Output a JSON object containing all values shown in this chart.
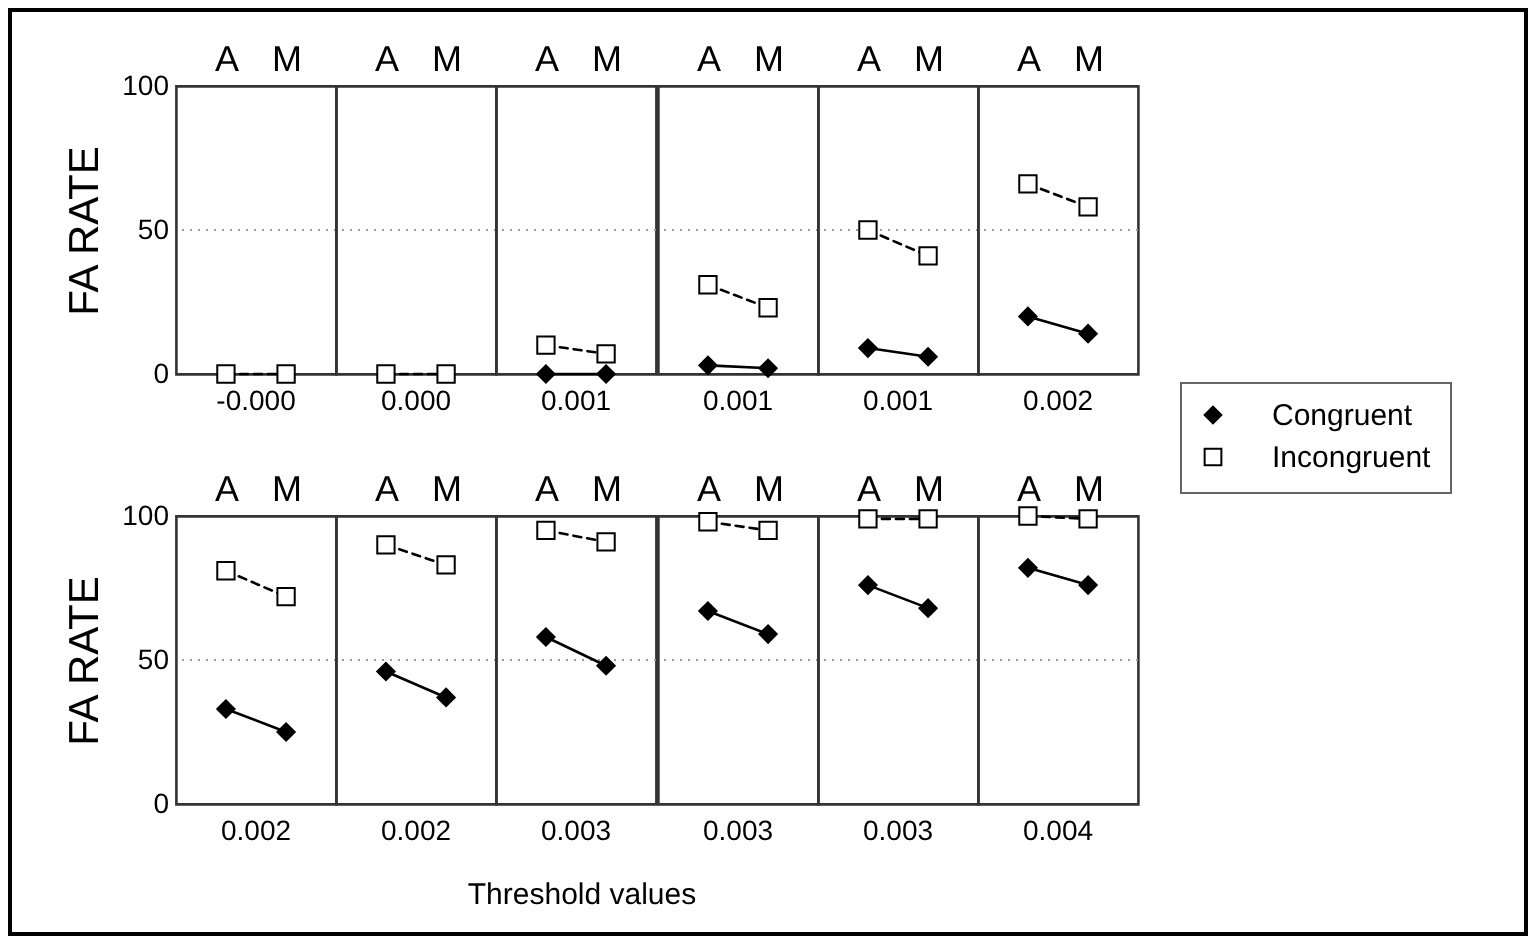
{
  "chart_data": [
    {
      "type": "line",
      "categories": [
        "A",
        "M"
      ],
      "xlabel": "-0.000",
      "ylabel": "FA RATE",
      "ylim": [
        0,
        100
      ],
      "yticks": [
        0,
        50,
        100
      ],
      "grid": false,
      "ref_lines": [
        {
          "axis": "y",
          "value": 50,
          "color": "#999999",
          "line_style": "dotted"
        }
      ],
      "series": [
        {
          "color": "#000000",
          "marker": "diamond",
          "line_style": "solid",
          "values": [
            null,
            null
          ]
        },
        {
          "color": "#000000",
          "marker": "square",
          "line_style": "dashed",
          "values": [
            0,
            0
          ]
        }
      ]
    },
    {
      "type": "line",
      "categories": [
        "A",
        "M"
      ],
      "xlabel": "0.000",
      "ylim": [
        0,
        100
      ],
      "tick_labels": "x",
      "grid": false,
      "ref_lines": [
        {
          "axis": "y",
          "value": 50,
          "color": "#999999",
          "line_style": "dotted"
        }
      ],
      "series": [
        {
          "color": "#000000",
          "marker": "diamond",
          "line_style": "solid",
          "values": [
            null,
            null
          ]
        },
        {
          "color": "#000000",
          "marker": "square",
          "line_style": "dashed",
          "values": [
            0,
            0
          ]
        }
      ]
    },
    {
      "type": "line",
      "categories": [
        "A",
        "M"
      ],
      "xlabel": "0.001",
      "ylim": [
        0,
        100
      ],
      "tick_labels": "x",
      "grid": false,
      "ref_lines": [
        {
          "axis": "y",
          "value": 50,
          "color": "#999999",
          "line_style": "dotted"
        }
      ],
      "series": [
        {
          "color": "#000000",
          "marker": "diamond",
          "line_style": "solid",
          "values": [
            0,
            0
          ]
        },
        {
          "color": "#000000",
          "marker": "square",
          "line_style": "dashed",
          "values": [
            10,
            7
          ]
        }
      ]
    },
    {
      "type": "line",
      "categories": [
        "A",
        "M"
      ],
      "xlabel": "0.001",
      "ylim": [
        0,
        100
      ],
      "tick_labels": "x",
      "grid": false,
      "ref_lines": [
        {
          "axis": "y",
          "value": 50,
          "color": "#999999",
          "line_style": "dotted"
        }
      ],
      "series": [
        {
          "color": "#000000",
          "marker": "diamond",
          "line_style": "solid",
          "values": [
            3,
            2
          ]
        },
        {
          "color": "#000000",
          "marker": "square",
          "line_style": "dashed",
          "values": [
            31,
            23
          ]
        }
      ]
    },
    {
      "type": "line",
      "categories": [
        "A",
        "M"
      ],
      "xlabel": "0.001",
      "ylim": [
        0,
        100
      ],
      "tick_labels": "x",
      "grid": false,
      "ref_lines": [
        {
          "axis": "y",
          "value": 50,
          "color": "#999999",
          "line_style": "dotted"
        }
      ],
      "series": [
        {
          "color": "#000000",
          "marker": "diamond",
          "line_style": "solid",
          "values": [
            9,
            6
          ]
        },
        {
          "color": "#000000",
          "marker": "square",
          "line_style": "dashed",
          "values": [
            50,
            41
          ]
        }
      ]
    },
    {
      "type": "line",
      "categories": [
        "A",
        "M"
      ],
      "xlabel": "0.002",
      "ylim": [
        0,
        100
      ],
      "tick_labels": "x",
      "grid": false,
      "legend": "right",
      "ref_lines": [
        {
          "axis": "y",
          "value": 50,
          "color": "#999999",
          "line_style": "dotted"
        }
      ],
      "series": [
        {
          "name": "Congruent",
          "color": "#000000",
          "marker": "diamond",
          "line_style": "solid",
          "values": [
            20,
            14
          ]
        },
        {
          "name": "Incongruent",
          "color": "#000000",
          "marker": "square",
          "line_style": "dashed",
          "values": [
            66,
            58
          ]
        }
      ]
    },
    {
      "type": "line",
      "categories": [
        "A",
        "M"
      ],
      "xlabel": "0.002",
      "ylabel": "FA RATE",
      "ylim": [
        0,
        100
      ],
      "yticks": [
        0,
        50,
        100
      ],
      "grid": false,
      "ref_lines": [
        {
          "axis": "y",
          "value": 50,
          "color": "#999999",
          "line_style": "dotted"
        }
      ],
      "series": [
        {
          "color": "#000000",
          "marker": "diamond",
          "line_style": "solid",
          "values": [
            33,
            25
          ]
        },
        {
          "color": "#000000",
          "marker": "square",
          "line_style": "dashed",
          "values": [
            81,
            72
          ]
        }
      ]
    },
    {
      "type": "line",
      "categories": [
        "A",
        "M"
      ],
      "xlabel": "0.002",
      "ylim": [
        0,
        100
      ],
      "tick_labels": "x",
      "grid": false,
      "ref_lines": [
        {
          "axis": "y",
          "value": 50,
          "color": "#999999",
          "line_style": "dotted"
        }
      ],
      "series": [
        {
          "color": "#000000",
          "marker": "diamond",
          "line_style": "solid",
          "values": [
            46,
            37
          ]
        },
        {
          "color": "#000000",
          "marker": "square",
          "line_style": "dashed",
          "values": [
            90,
            83
          ]
        }
      ]
    },
    {
      "type": "line",
      "categories": [
        "A",
        "M"
      ],
      "xlabel": "0.003",
      "ylim": [
        0,
        100
      ],
      "tick_labels": "x",
      "grid": false,
      "annotations": [
        "Threshold values"
      ],
      "ref_lines": [
        {
          "axis": "y",
          "value": 50,
          "color": "#999999",
          "line_style": "dotted"
        }
      ],
      "series": [
        {
          "color": "#000000",
          "marker": "diamond",
          "line_style": "solid",
          "values": [
            58,
            48
          ]
        },
        {
          "color": "#000000",
          "marker": "square",
          "line_style": "dashed",
          "values": [
            95,
            91
          ]
        }
      ]
    },
    {
      "type": "line",
      "categories": [
        "A",
        "M"
      ],
      "xlabel": "0.003",
      "ylim": [
        0,
        100
      ],
      "tick_labels": "x",
      "grid": false,
      "ref_lines": [
        {
          "axis": "y",
          "value": 50,
          "color": "#999999",
          "line_style": "dotted"
        }
      ],
      "series": [
        {
          "color": "#000000",
          "marker": "diamond",
          "line_style": "solid",
          "values": [
            67,
            59
          ]
        },
        {
          "color": "#000000",
          "marker": "square",
          "line_style": "dashed",
          "values": [
            98,
            95
          ]
        }
      ]
    },
    {
      "type": "line",
      "categories": [
        "A",
        "M"
      ],
      "xlabel": "0.003",
      "ylim": [
        0,
        100
      ],
      "tick_labels": "x",
      "grid": false,
      "ref_lines": [
        {
          "axis": "y",
          "value": 50,
          "color": "#999999",
          "line_style": "dotted"
        }
      ],
      "series": [
        {
          "color": "#000000",
          "marker": "diamond",
          "line_style": "solid",
          "values": [
            76,
            68
          ]
        },
        {
          "color": "#000000",
          "marker": "square",
          "line_style": "dashed",
          "values": [
            99,
            99
          ]
        }
      ]
    },
    {
      "type": "line",
      "categories": [
        "A",
        "M"
      ],
      "xlabel": "0.004",
      "ylim": [
        0,
        100
      ],
      "tick_labels": "x",
      "grid": false,
      "ref_lines": [
        {
          "axis": "y",
          "value": 50,
          "color": "#999999",
          "line_style": "dotted"
        }
      ],
      "series": [
        {
          "color": "#000000",
          "marker": "diamond",
          "line_style": "solid",
          "values": [
            82,
            76
          ]
        },
        {
          "color": "#000000",
          "marker": "square",
          "line_style": "dashed",
          "values": [
            100,
            99
          ]
        }
      ]
    }
  ]
}
